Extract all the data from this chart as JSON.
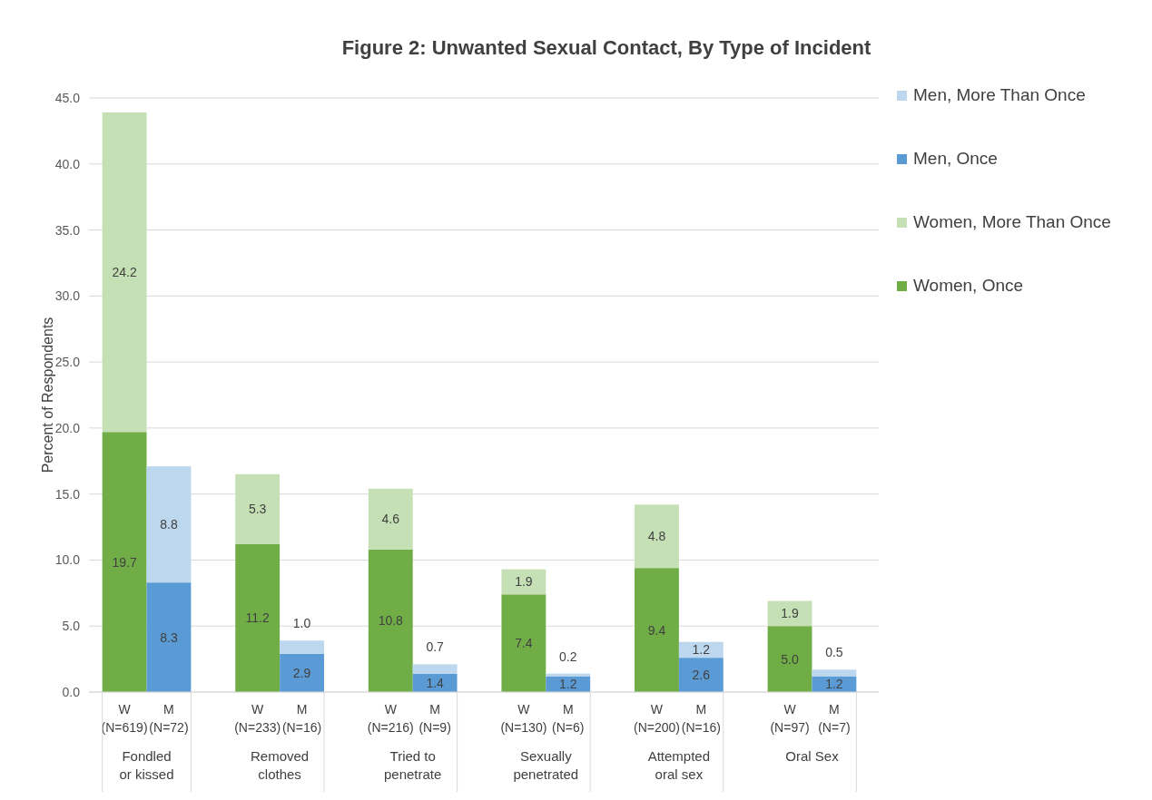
{
  "chart_data": {
    "type": "bar",
    "title": "Figure 2: Unwanted Sexual Contact, By Type of Incident",
    "ylabel": "Percent of Respondents",
    "categories": [
      "W\n(N=619)",
      "M\n(N=72)",
      "W\n(N=233)",
      "M\n(N=16)",
      "W\n(N=216)",
      "M\n(N=9)",
      "W\n(N=130)",
      "M\n(N=6)",
      "W\n(N=200)",
      "M\n(N=16)",
      "W\n(N=97)",
      "M\n(N=7)"
    ],
    "annotations": [
      "Fondled\nor kissed",
      "Removed\nclothes",
      "Tried to\npenetrate",
      "Sexually\npenetrated",
      "Attempted\noral sex",
      "Oral Sex"
    ],
    "stacked": true,
    "series": [
      {
        "name": "Women, Once",
        "color": "#70ad47",
        "values": [
          19.7,
          null,
          11.2,
          null,
          10.8,
          null,
          7.4,
          null,
          9.4,
          null,
          5.0,
          null
        ],
        "value_labels": [
          "19.7",
          null,
          "11.2",
          null,
          "10.8",
          null,
          "7.4",
          null,
          "9.4",
          null,
          "5.0",
          null
        ]
      },
      {
        "name": "Women, More Than Once",
        "color": "#c5e0b4",
        "values": [
          24.2,
          null,
          5.3,
          null,
          4.6,
          null,
          1.9,
          null,
          4.8,
          null,
          1.9,
          null
        ],
        "value_labels": [
          "24.2",
          null,
          "5.3",
          null,
          "4.6",
          null,
          "1.9",
          null,
          "4.8",
          null,
          "1.9",
          null
        ]
      },
      {
        "name": "Men, Once",
        "color": "#5b9bd5",
        "values": [
          null,
          8.3,
          null,
          2.9,
          null,
          1.4,
          null,
          1.2,
          null,
          2.6,
          null,
          1.2
        ],
        "value_labels": [
          null,
          "8.3",
          null,
          "2.9",
          null,
          "1.4",
          null,
          "1.2",
          null,
          "2.6",
          null,
          "1.2"
        ]
      },
      {
        "name": "Men, More Than Once",
        "color": "#bdd7ee",
        "values": [
          null,
          8.8,
          null,
          1.0,
          null,
          0.7,
          null,
          0.2,
          null,
          1.2,
          null,
          0.5
        ],
        "value_labels": [
          null,
          "8.8",
          null,
          "1.0",
          null,
          "0.7",
          null,
          "0.2",
          null,
          "1.2",
          null,
          "0.5"
        ]
      }
    ],
    "ylim": [
      0,
      45
    ],
    "yticks": [
      {
        "value": 0,
        "label": "0.0"
      },
      {
        "value": 5,
        "label": "5.0"
      },
      {
        "value": 10,
        "label": "10.0"
      },
      {
        "value": 15,
        "label": "15.0"
      },
      {
        "value": 20,
        "label": "20.0"
      },
      {
        "value": 25,
        "label": "25.0"
      },
      {
        "value": 30,
        "label": "30.0"
      },
      {
        "value": 35,
        "label": "35.0"
      },
      {
        "value": 40,
        "label": "40.0"
      },
      {
        "value": 45,
        "label": "45.0"
      }
    ],
    "grid": "y",
    "legend": "right"
  }
}
